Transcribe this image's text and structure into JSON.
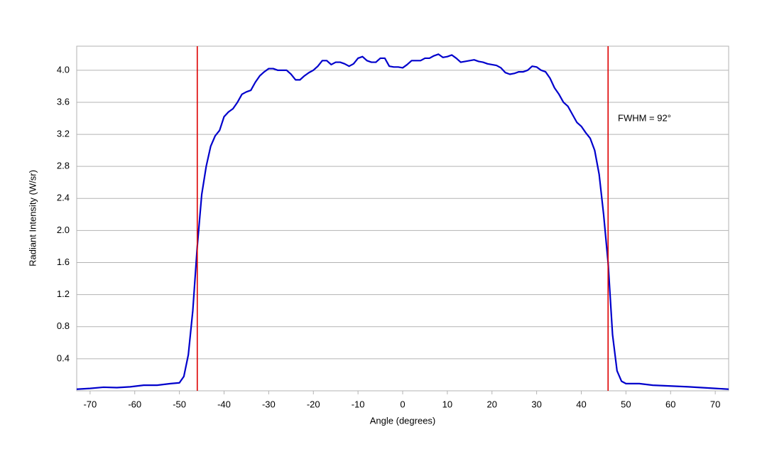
{
  "chart_data": {
    "type": "line",
    "x_label": "Angle (degrees)",
    "y_label": "Radiant Intensity (W/sr)",
    "annotation": "FWHM = 92°",
    "xlim": [
      -73,
      73
    ],
    "ylim": [
      0,
      4.3
    ],
    "xticks": [
      -70,
      -60,
      -50,
      -40,
      -30,
      -20,
      -10,
      0,
      10,
      20,
      30,
      40,
      50,
      60,
      70
    ],
    "yticks": [
      0.4,
      0.8,
      1.2,
      1.6,
      {
        "value": 2,
        "label": "2.0"
      },
      2.4,
      2.8,
      3.2,
      3.6,
      {
        "value": 4,
        "label": "4.0"
      }
    ],
    "grid": true,
    "color": "#0000cc",
    "vlines": [
      -46,
      46
    ],
    "vline_color": "#dd0000",
    "x": [
      -73,
      -70,
      -67,
      -64,
      -61,
      -58,
      -55,
      -52,
      -50,
      -49,
      -48,
      -47,
      -46,
      -45,
      -44,
      -43,
      -42,
      -41,
      -40,
      -39,
      -38,
      -37,
      -36,
      -35,
      -34,
      -33,
      -32,
      -31,
      -30,
      -29,
      -28,
      -27,
      -26,
      -25,
      -24,
      -23,
      -22,
      -21,
      -20,
      -19,
      -18,
      -17,
      -16,
      -15,
      -14,
      -13,
      -12,
      -11,
      -10,
      -9,
      -8,
      -7,
      -6,
      -5,
      -4,
      -3,
      -2,
      -1,
      0,
      1,
      2,
      3,
      4,
      5,
      6,
      7,
      8,
      9,
      10,
      11,
      12,
      13,
      14,
      15,
      16,
      17,
      18,
      19,
      20,
      21,
      22,
      23,
      24,
      25,
      26,
      27,
      28,
      29,
      30,
      31,
      32,
      33,
      34,
      35,
      36,
      37,
      38,
      39,
      40,
      41,
      42,
      43,
      44,
      45,
      46,
      47,
      48,
      49,
      50,
      53,
      56,
      60,
      64,
      67,
      70,
      73
    ],
    "values": [
      0.02,
      0.03,
      0.045,
      0.04,
      0.05,
      0.07,
      0.07,
      0.09,
      0.1,
      0.18,
      0.45,
      1.0,
      1.8,
      2.45,
      2.8,
      3.05,
      3.18,
      3.25,
      3.42,
      3.48,
      3.52,
      3.6,
      3.7,
      3.73,
      3.75,
      3.85,
      3.93,
      3.98,
      4.02,
      4.02,
      4.0,
      4.0,
      4.0,
      3.95,
      3.88,
      3.88,
      3.93,
      3.97,
      4.0,
      4.05,
      4.12,
      4.12,
      4.07,
      4.1,
      4.1,
      4.08,
      4.05,
      4.08,
      4.15,
      4.17,
      4.12,
      4.1,
      4.1,
      4.15,
      4.15,
      4.05,
      4.04,
      4.04,
      4.03,
      4.07,
      4.12,
      4.12,
      4.12,
      4.15,
      4.15,
      4.18,
      4.2,
      4.16,
      4.17,
      4.19,
      4.15,
      4.1,
      4.11,
      4.12,
      4.13,
      4.11,
      4.1,
      4.08,
      4.07,
      4.06,
      4.03,
      3.97,
      3.95,
      3.96,
      3.98,
      3.98,
      4.0,
      4.05,
      4.04,
      4.0,
      3.98,
      3.9,
      3.78,
      3.7,
      3.6,
      3.55,
      3.45,
      3.35,
      3.3,
      3.22,
      3.15,
      3.0,
      2.7,
      2.2,
      1.6,
      0.7,
      0.25,
      0.12,
      0.09,
      0.09,
      0.07,
      0.06,
      0.05,
      0.04,
      0.03,
      0.02
    ]
  }
}
